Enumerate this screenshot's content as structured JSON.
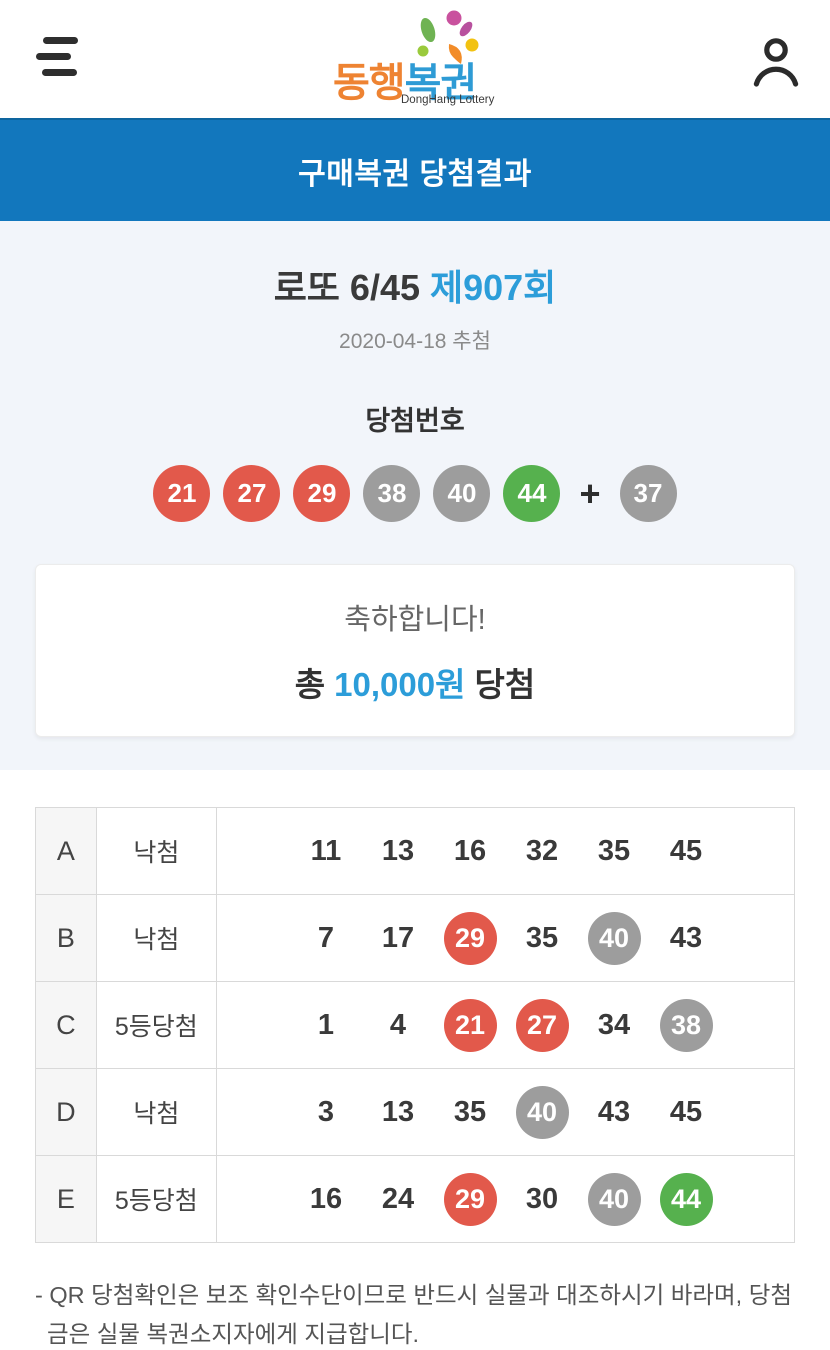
{
  "colors": {
    "banner_blue": "#1277BD",
    "accent_blue": "#2C9DD9",
    "ball_red": "#E2594B",
    "ball_gray": "#9D9D9D",
    "ball_green": "#56B14E",
    "logo_orange": "#EE8332",
    "logo_blue": "#2E9BD5"
  },
  "header": {
    "logo": {
      "part1": "동행",
      "part2": "복권",
      "subtitle": "DongHang Lottery"
    }
  },
  "banner": {
    "title": "구매복권 당첨결과"
  },
  "draw": {
    "game": "로또 6/45",
    "round": "제907회",
    "date": "2020-04-18 추첨",
    "numbers_label": "당첨번호",
    "numbers": [
      {
        "value": "21",
        "color": "red"
      },
      {
        "value": "27",
        "color": "red"
      },
      {
        "value": "29",
        "color": "red"
      },
      {
        "value": "38",
        "color": "gray"
      },
      {
        "value": "40",
        "color": "gray"
      },
      {
        "value": "44",
        "color": "green"
      }
    ],
    "plus": "+",
    "bonus": {
      "value": "37",
      "color": "gray"
    }
  },
  "result": {
    "congrats": "축하합니다!",
    "prize_prefix": "총",
    "prize_amount": "10,000원",
    "prize_suffix": "당첨"
  },
  "table": {
    "rows": [
      {
        "label": "A",
        "status": "낙첨",
        "numbers": [
          {
            "value": "11",
            "match": null
          },
          {
            "value": "13",
            "match": null
          },
          {
            "value": "16",
            "match": null
          },
          {
            "value": "32",
            "match": null
          },
          {
            "value": "35",
            "match": null
          },
          {
            "value": "45",
            "match": null
          }
        ]
      },
      {
        "label": "B",
        "status": "낙첨",
        "numbers": [
          {
            "value": "7",
            "match": null
          },
          {
            "value": "17",
            "match": null
          },
          {
            "value": "29",
            "match": "red"
          },
          {
            "value": "35",
            "match": null
          },
          {
            "value": "40",
            "match": "gray"
          },
          {
            "value": "43",
            "match": null
          }
        ]
      },
      {
        "label": "C",
        "status": "5등당첨",
        "numbers": [
          {
            "value": "1",
            "match": null
          },
          {
            "value": "4",
            "match": null
          },
          {
            "value": "21",
            "match": "red"
          },
          {
            "value": "27",
            "match": "red"
          },
          {
            "value": "34",
            "match": null
          },
          {
            "value": "38",
            "match": "gray"
          }
        ]
      },
      {
        "label": "D",
        "status": "낙첨",
        "numbers": [
          {
            "value": "3",
            "match": null
          },
          {
            "value": "13",
            "match": null
          },
          {
            "value": "35",
            "match": null
          },
          {
            "value": "40",
            "match": "gray"
          },
          {
            "value": "43",
            "match": null
          },
          {
            "value": "45",
            "match": null
          }
        ]
      },
      {
        "label": "E",
        "status": "5등당첨",
        "numbers": [
          {
            "value": "16",
            "match": null
          },
          {
            "value": "24",
            "match": null
          },
          {
            "value": "29",
            "match": "red"
          },
          {
            "value": "30",
            "match": null
          },
          {
            "value": "40",
            "match": "gray"
          },
          {
            "value": "44",
            "match": "green"
          }
        ]
      }
    ]
  },
  "footer": {
    "note": "- QR 당첨확인은 보조 확인수단이므로 반드시 실물과 대조하시기 바라며, 당첨금은 실물 복권소지자에게 지급합니다."
  }
}
